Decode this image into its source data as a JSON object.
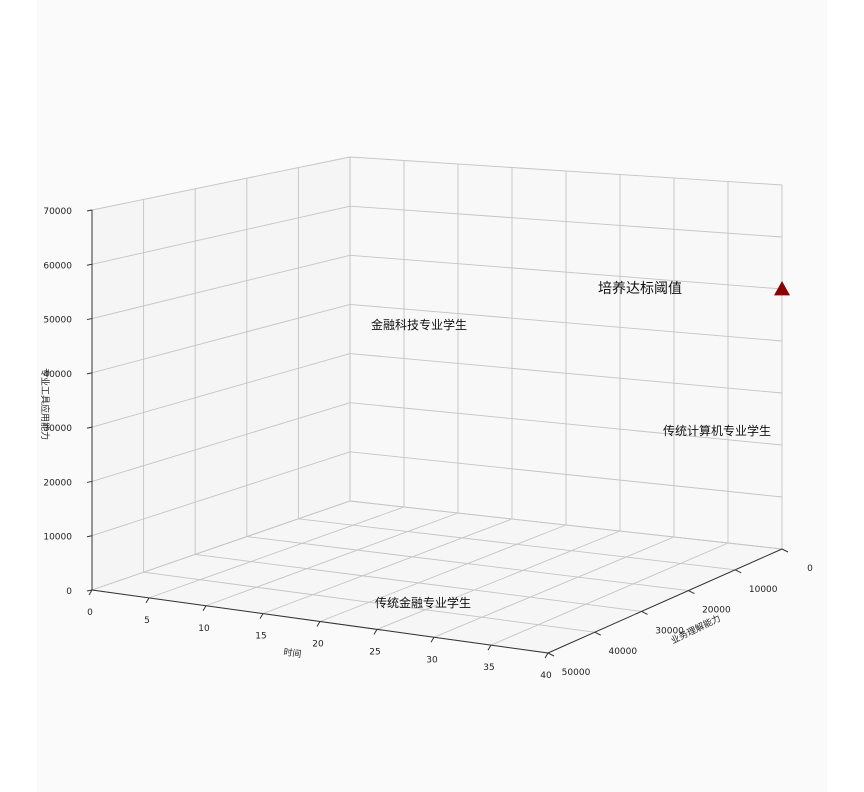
{
  "chart_data": {
    "type": "scatter",
    "projection": "3d",
    "title": "",
    "xlabel": "时间",
    "ylabel": "业务理解能力",
    "zlabel": "专业工具应用能力",
    "xlim": [
      0,
      40
    ],
    "ylim": [
      0,
      50000
    ],
    "zlim": [
      0,
      70000
    ],
    "x_ticks": [
      "0",
      "5",
      "10",
      "15",
      "20",
      "25",
      "30",
      "35",
      "40"
    ],
    "y_ticks": [
      "0",
      "10000",
      "20000",
      "30000",
      "40000",
      "50000"
    ],
    "z_ticks": [
      "0",
      "10000",
      "20000",
      "30000",
      "40000",
      "50000",
      "60000",
      "70000"
    ],
    "grid": true,
    "points": [
      {
        "x": 40,
        "y": 0,
        "z": 50000,
        "marker": "triangle",
        "color": "#8b0000"
      }
    ],
    "annotations": [
      {
        "text": "培养达标阈值",
        "size": "large"
      },
      {
        "text": "金融科技专业学生",
        "size": "normal"
      },
      {
        "text": "传统计算机专业学生",
        "size": "normal"
      },
      {
        "text": "传统金融专业学生",
        "size": "normal"
      }
    ]
  }
}
